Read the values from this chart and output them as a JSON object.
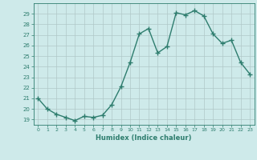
{
  "x": [
    0,
    1,
    2,
    3,
    4,
    5,
    6,
    7,
    8,
    9,
    10,
    11,
    12,
    13,
    14,
    15,
    16,
    17,
    18,
    19,
    20,
    21,
    22,
    23
  ],
  "y": [
    21,
    20,
    19.5,
    19.2,
    18.9,
    19.3,
    19.2,
    19.4,
    20.4,
    22.1,
    24.4,
    27.1,
    27.6,
    25.3,
    25.9,
    29.1,
    28.9,
    29.3,
    28.8,
    27.1,
    26.2,
    26.5,
    24.4,
    23.3
  ],
  "xlim": [
    -0.5,
    23.5
  ],
  "ylim": [
    18.5,
    30
  ],
  "yticks": [
    19,
    20,
    21,
    22,
    23,
    24,
    25,
    26,
    27,
    28,
    29
  ],
  "xticks": [
    0,
    1,
    2,
    3,
    4,
    5,
    6,
    7,
    8,
    9,
    10,
    11,
    12,
    13,
    14,
    15,
    16,
    17,
    18,
    19,
    20,
    21,
    22,
    23
  ],
  "xlabel": "Humidex (Indice chaleur)",
  "line_color": "#2e7d6e",
  "bg_color": "#ceeaea",
  "grid_color": "#b0c8c8",
  "tick_color": "#2e7d6e",
  "label_color": "#2e7d6e",
  "marker": "+",
  "marker_size": 4,
  "line_width": 1.0
}
